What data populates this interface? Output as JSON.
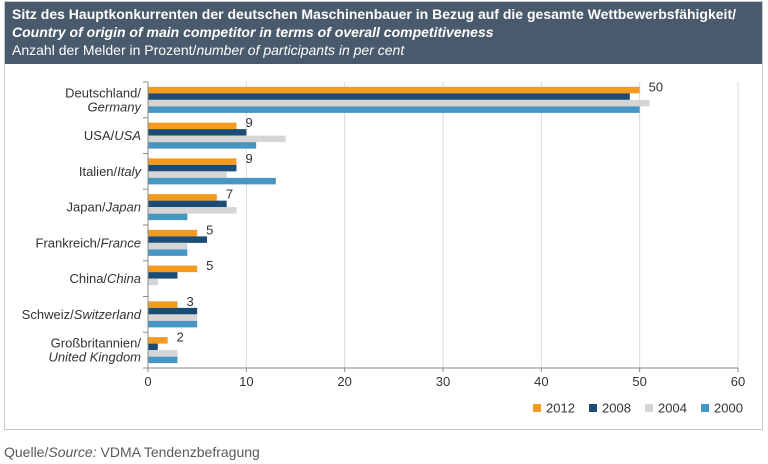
{
  "theme": {
    "header_bg": "#4a5a6d",
    "header_text": "#ffffff"
  },
  "chart_data": {
    "type": "bar",
    "orientation": "horizontal",
    "title": "Sitz des Hauptkonkurrenten der deutschen Maschinenbauer in Bezug auf die gesamte Wettbewerbsfähigkeit/",
    "title_en": "Country of origin of main competitor in terms of overall competitiveness",
    "unit_label": "Anzahl der Melder in Prozent/",
    "unit_label_en": "number of participants in per cent",
    "categories": [
      {
        "de": "Deutschland/",
        "en": "Germany"
      },
      {
        "de": "USA/",
        "en": "USA"
      },
      {
        "de": "Italien/",
        "en": "Italy"
      },
      {
        "de": "Japan/",
        "en": "Japan"
      },
      {
        "de": "Frankreich/",
        "en": "France"
      },
      {
        "de": "China/",
        "en": "China"
      },
      {
        "de": "Schweiz/",
        "en": "Switzerland"
      },
      {
        "de": "Großbritannien/",
        "en": "United Kingdom"
      }
    ],
    "series": [
      {
        "name": "2012",
        "color": "#f39a1f",
        "data_labels": true,
        "values": [
          50,
          9,
          9,
          7,
          5,
          5,
          3,
          2
        ]
      },
      {
        "name": "2008",
        "color": "#1c4c74",
        "values": [
          49,
          10,
          9,
          8,
          6,
          3,
          5,
          1
        ]
      },
      {
        "name": "2004",
        "color": "#d5d5d5",
        "values": [
          51,
          14,
          8,
          9,
          4,
          1,
          5,
          3
        ]
      },
      {
        "name": "2000",
        "color": "#4596c3",
        "values": [
          50,
          11,
          13,
          4,
          4,
          0,
          5,
          3
        ]
      }
    ],
    "xlim": [
      0,
      60
    ],
    "xticks": [
      0,
      10,
      20,
      30,
      40,
      50,
      60
    ],
    "grid": true,
    "legend": "bottom-right"
  },
  "source": {
    "label_de": "Quelle/",
    "label_en": "Source:",
    "text": "VDMA Tendenzbefragung"
  }
}
